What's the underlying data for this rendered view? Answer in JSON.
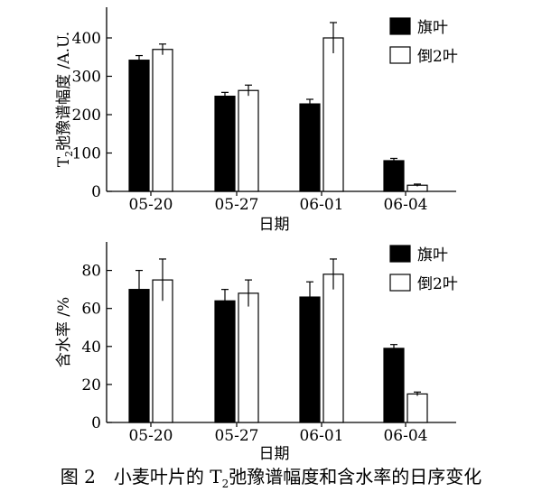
{
  "caption": {
    "number": "图 2",
    "text_before": "小麦叶片的 T",
    "subscript": "2",
    "text_after": "弛豫谱幅度和含水率的日序变化"
  },
  "chart_data": [
    {
      "type": "bar",
      "ylabel_main": "T",
      "ylabel_sub": "2",
      "ylabel_rest": "弛豫谱幅度 /A.U.",
      "xlabel": "日期",
      "categories": [
        "05-20",
        "05-27",
        "06-01",
        "06-04"
      ],
      "ylim": [
        0,
        480
      ],
      "yticks": [
        0,
        100,
        200,
        300,
        400
      ],
      "legend_position": "top-right",
      "series": [
        {
          "name": "旗叶",
          "color": "#000000",
          "values": [
            342,
            248,
            228,
            80
          ],
          "errors": [
            12,
            10,
            12,
            6
          ]
        },
        {
          "name": "倒2叶",
          "color": "#ffffff",
          "values": [
            370,
            263,
            400,
            16
          ],
          "errors": [
            14,
            14,
            40,
            3
          ]
        }
      ]
    },
    {
      "type": "bar",
      "ylabel": "含水率 /%",
      "xlabel": "日期",
      "categories": [
        "05-20",
        "05-27",
        "06-01",
        "06-04"
      ],
      "ylim": [
        0,
        95
      ],
      "yticks": [
        0,
        20,
        40,
        60,
        80
      ],
      "legend_position": "top-right",
      "series": [
        {
          "name": "旗叶",
          "color": "#000000",
          "values": [
            70,
            64,
            66,
            39
          ],
          "errors": [
            10,
            6,
            8,
            2
          ]
        },
        {
          "name": "倒2叶",
          "color": "#ffffff",
          "values": [
            75,
            68,
            78,
            15
          ],
          "errors": [
            11,
            7,
            8,
            1
          ]
        }
      ]
    }
  ]
}
